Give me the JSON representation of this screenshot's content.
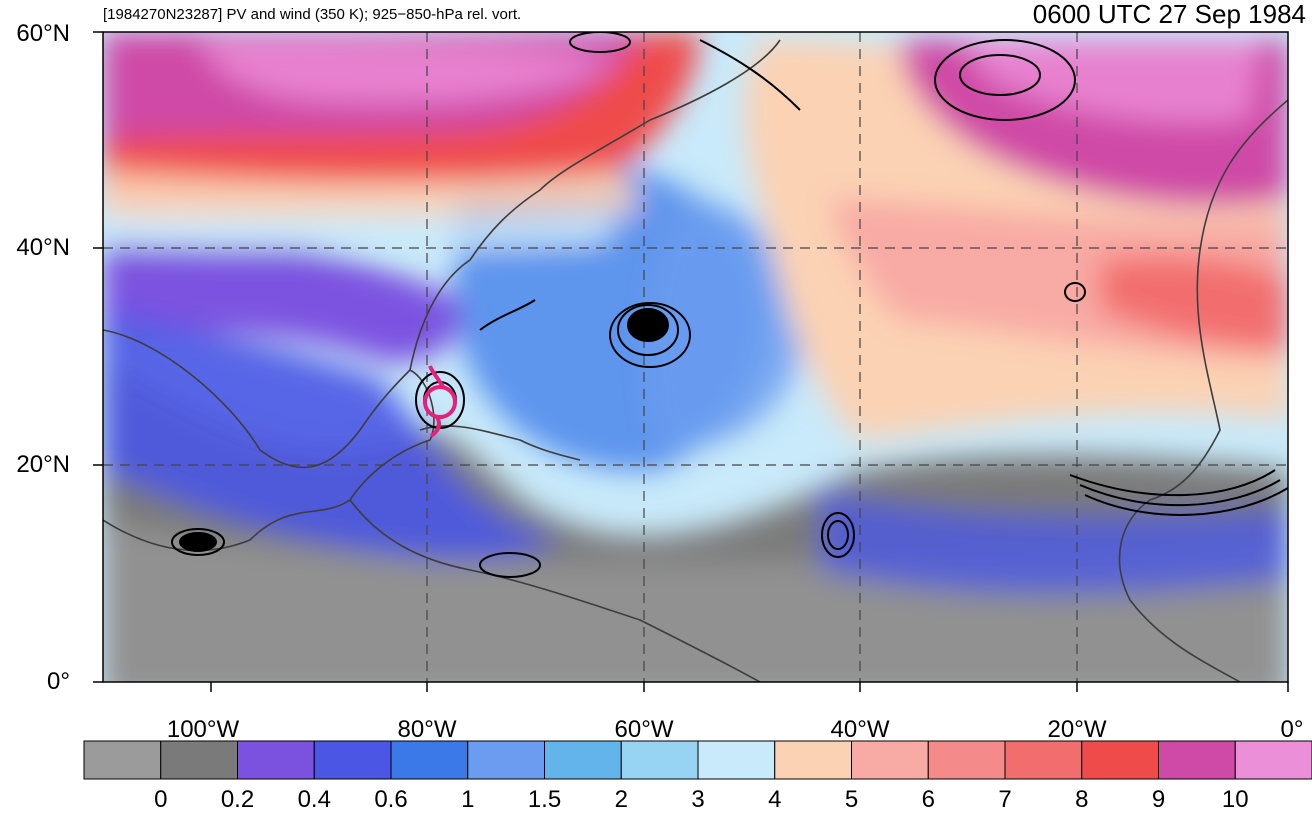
{
  "header": {
    "description": "[1984270N23287] PV and wind (350 K); 925−850-hPa rel. vort.",
    "timestamp": "0600 UTC 27 Sep 1984"
  },
  "axes": {
    "lat_labels": [
      "60°N",
      "40°N",
      "20°N",
      "0°"
    ],
    "lon_labels": [
      "100°W",
      "80°W",
      "60°W",
      "40°W",
      "20°W",
      "0°"
    ]
  },
  "colorbar": {
    "tick_labels": [
      "0",
      "0.2",
      "0.4",
      "0.6",
      "1",
      "1.5",
      "2",
      "3",
      "4",
      "5",
      "6",
      "7",
      "8",
      "9",
      "10"
    ],
    "colors": [
      "#9b9b9b",
      "#7a7a7a",
      "#7b52e0",
      "#4b57e4",
      "#3b78e8",
      "#6c9cef",
      "#62b4ea",
      "#97d3f3",
      "#c9eafa",
      "#fbd2b4",
      "#f8aaa4",
      "#f58a8a",
      "#f26e6e",
      "#ef4b4b",
      "#cf4aa6",
      "#ec8fd9"
    ]
  },
  "chart_data": {
    "type": "map",
    "projection": "cylindrical",
    "lon_range": [
      -110,
      0
    ],
    "lat_range": [
      0,
      60
    ],
    "grid": true,
    "shaded_field": "PV at 350 K",
    "contour_field": "925-850-hPa relative vorticity",
    "vector_field": "wind barbs at 350 K",
    "storm_marker": {
      "symbol": "tropical-cyclone",
      "lon": -79,
      "lat": 26,
      "color": "#e8207a"
    }
  }
}
